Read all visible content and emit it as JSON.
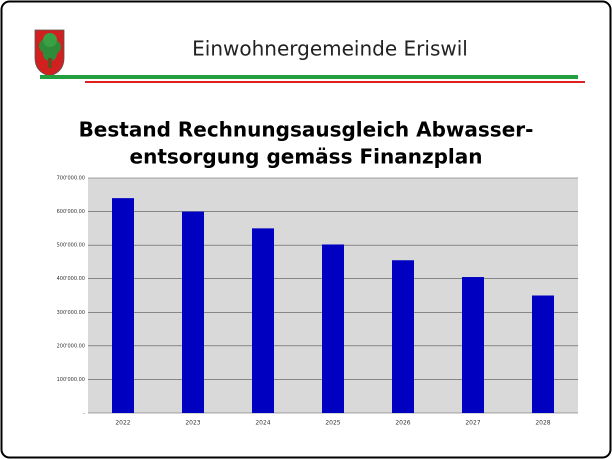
{
  "header": "Einwohnergemeinde Eriswil",
  "chart_data": {
    "type": "bar",
    "title": [
      "Bestand Rechnungsausgleich Abwasser-",
      "entsorgung gemäss Finanzplan"
    ],
    "categories": [
      "2022",
      "2023",
      "2024",
      "2025",
      "2026",
      "2027",
      "2028"
    ],
    "values": [
      640000,
      600000,
      550000,
      502000,
      455000,
      405000,
      350000
    ],
    "color": "#0000c0",
    "ylim": [
      0,
      700000
    ],
    "yticks": [
      {
        "value": 0,
        "label": "-"
      },
      {
        "value": 100000,
        "label": "100'000.00"
      },
      {
        "value": 200000,
        "label": "200'000.00"
      },
      {
        "value": 300000,
        "label": "300'000.00"
      },
      {
        "value": 400000,
        "label": "400'000.00"
      },
      {
        "value": 500000,
        "label": "500'000.00"
      },
      {
        "value": 600000,
        "label": "600'000.00"
      },
      {
        "value": 700000,
        "label": "700'000.00"
      }
    ],
    "grid": true
  }
}
